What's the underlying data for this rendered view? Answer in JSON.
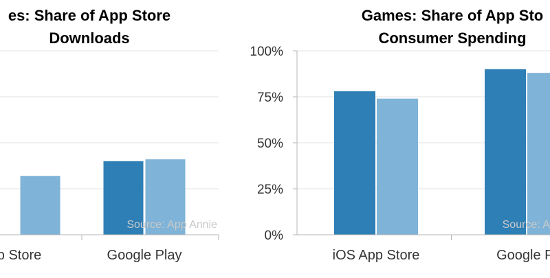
{
  "colors": {
    "series_dark": "#2e7fb5",
    "series_light": "#7fb3d7",
    "grid": "#e3e3e3",
    "axis": "#b5b5b5"
  },
  "chart_data": [
    {
      "type": "bar",
      "title_lines": [
        "es: Share of App Store",
        "Downloads"
      ],
      "categories": [
        "p Store",
        "Google Play"
      ],
      "series": [
        {
          "values": [
            null,
            40
          ]
        },
        {
          "values": [
            32,
            41
          ]
        }
      ],
      "ylim": [
        0,
        100
      ],
      "yticks": [],
      "grid": true,
      "source": "Source: App Annie"
    },
    {
      "type": "bar",
      "title_lines": [
        "Games: Share of App Sto",
        "Consumer Spending"
      ],
      "categories": [
        "iOS App Store",
        "Google Pl"
      ],
      "series": [
        {
          "values": [
            78,
            90
          ]
        },
        {
          "values": [
            74,
            88
          ]
        }
      ],
      "ylim": [
        0,
        100
      ],
      "yticks": [
        "0%",
        "25%",
        "50%",
        "75%",
        "100%"
      ],
      "grid": true,
      "source": "Source: A"
    }
  ]
}
